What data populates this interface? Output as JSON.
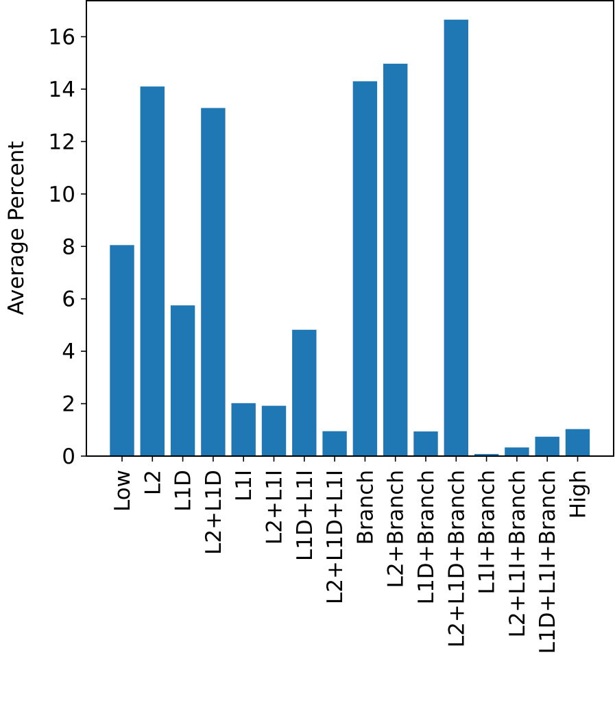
{
  "chart_data": {
    "type": "bar",
    "title": "",
    "xlabel": "",
    "ylabel": "Average Percent",
    "ylim": [
      0,
      17.4
    ],
    "yticks": [
      0,
      2,
      4,
      6,
      8,
      10,
      12,
      14,
      16
    ],
    "grid": false,
    "bar_color": "#1f77b4",
    "categories": [
      "Low",
      "L2",
      "L1D",
      "L2+L1D",
      "L1I",
      "L2+L1I",
      "L1D+L1I",
      "L2+L1D+L1I",
      "Branch",
      "L2+Branch",
      "L1D+Branch",
      "L2+L1D+Branch",
      "L1I+Branch",
      "L2+L1I+Branch",
      "L1D+L1I+Branch",
      "High"
    ],
    "values": [
      8.05,
      14.1,
      5.75,
      13.28,
      2.02,
      1.92,
      4.82,
      0.95,
      14.3,
      14.97,
      0.94,
      16.65,
      0.08,
      0.33,
      0.74,
      1.03
    ]
  }
}
